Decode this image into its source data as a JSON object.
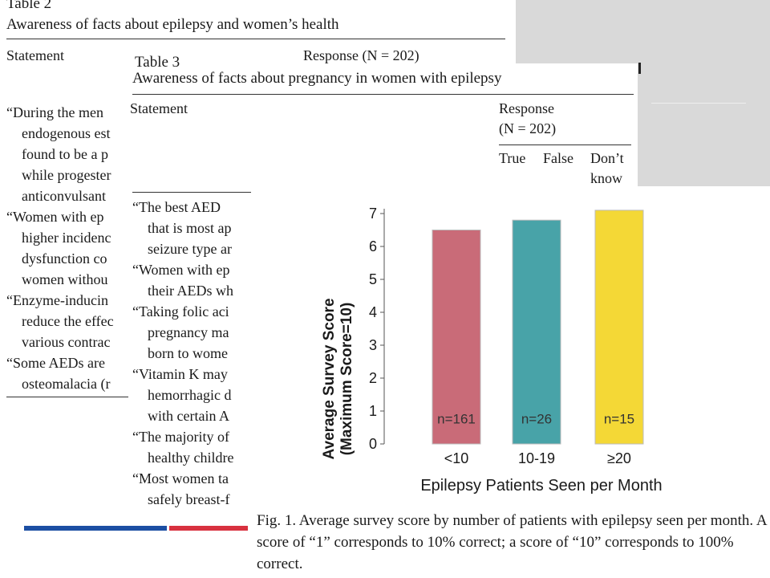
{
  "table2": {
    "title": "Table 2",
    "caption": "Awareness of facts about epilepsy and women’s health",
    "header": {
      "statement": "Statement",
      "response": "Response (N = 202)"
    },
    "rows": [
      "“During the men",
      "endogenous est",
      "found to be a p",
      "while progester",
      "anticonvulsant",
      "“Women with ep",
      "higher incidenc",
      "dysfunction co",
      "women withou",
      "“Enzyme-inducin",
      "reduce the effec",
      "various contrac",
      "“Some AEDs are",
      "osteomalacia (r"
    ]
  },
  "table3": {
    "title_fragment": "Table 3",
    "caption": "Awareness of facts about pregnancy in women with epilepsy",
    "header": {
      "statement": "Statement",
      "response": "Response",
      "n": "(N = 202)",
      "true": "True",
      "false": "False",
      "dont": "Don’t",
      "know": "know"
    },
    "rows": [
      "“The best AED",
      "that is most ap",
      "seizure type ar",
      "“Women with ep",
      "their AEDs wh",
      "“Taking folic aci",
      "pregnancy ma",
      "born to wome",
      "“Vitamin K may",
      "hemorrhagic d",
      "with certain A",
      "“The majority of",
      "healthy childre",
      "“Most women ta",
      "safely breast-f"
    ]
  },
  "chart_data": {
    "type": "bar",
    "categories": [
      "<10",
      "10-19",
      "≥20"
    ],
    "values": [
      6.5,
      6.8,
      7.1
    ],
    "bar_labels": [
      "n=161",
      "n=26",
      "n=15"
    ],
    "colors": [
      "#c96b78",
      "#48a3a8",
      "#f4d836"
    ],
    "xlabel": "Epilepsy Patients Seen per Month",
    "ylabel": "Average Survey Score",
    "ylabel2": "(Maximum Score=10)",
    "ylim": [
      0,
      7
    ],
    "yticks": [
      0,
      1,
      2,
      3,
      4,
      5,
      6,
      7
    ],
    "grid": false
  },
  "figure": {
    "caption": "Fig. 1.  Average survey score by number of patients with epilepsy seen per month. A score of “1” corresponds to 10% correct; a score of “10” corresponds to 100% correct."
  },
  "decor": {
    "blue": "#1c4fa3",
    "red": "#d8313f",
    "panel": "#d9d9d9"
  }
}
